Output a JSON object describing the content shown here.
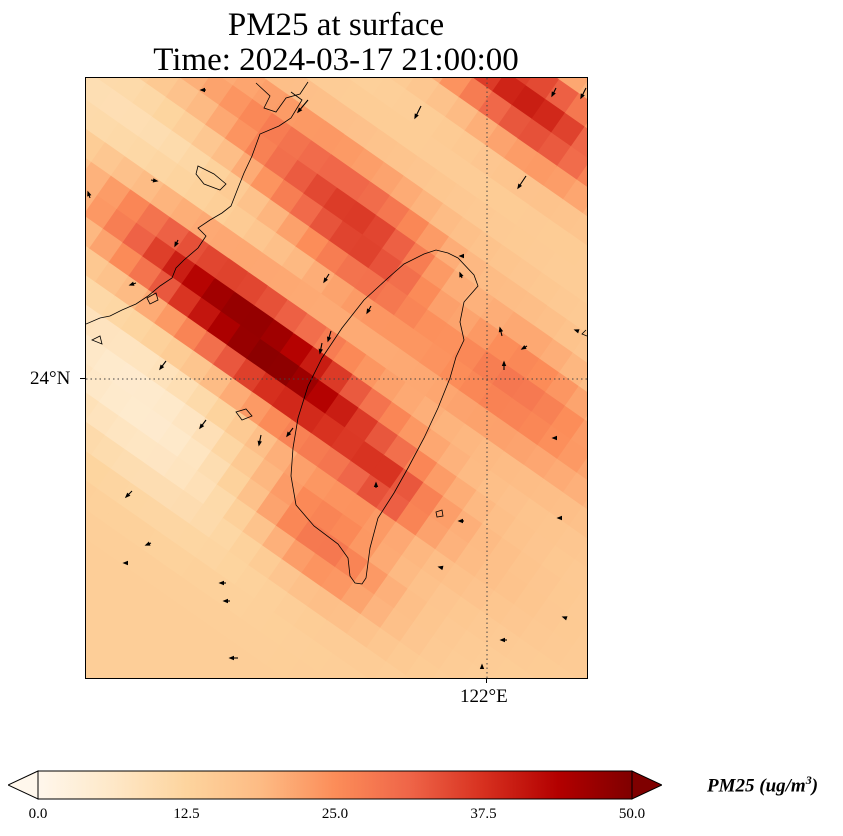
{
  "title": {
    "line1": "PM25 at surface",
    "line2": "Time: 2024-03-17 21:00:00"
  },
  "map": {
    "lat_tick_label": "24°N",
    "lon_tick_label": "122°E",
    "gridline_style": "dotted",
    "coastline_color": "#000000"
  },
  "colorbar": {
    "label_main": "PM25 (ug/m",
    "label_sup": "3",
    "label_close": ")",
    "min": 0.0,
    "max": 50.0,
    "ticks": [
      "0.0",
      "12.5",
      "25.0",
      "37.5",
      "50.0"
    ],
    "colormap": "OrRd",
    "extend": "both",
    "stops": [
      "#fff7ec",
      "#fee8c8",
      "#fdd49e",
      "#fdbb84",
      "#fc8d59",
      "#ef6548",
      "#d7301f",
      "#b30000",
      "#7f0000"
    ]
  }
}
